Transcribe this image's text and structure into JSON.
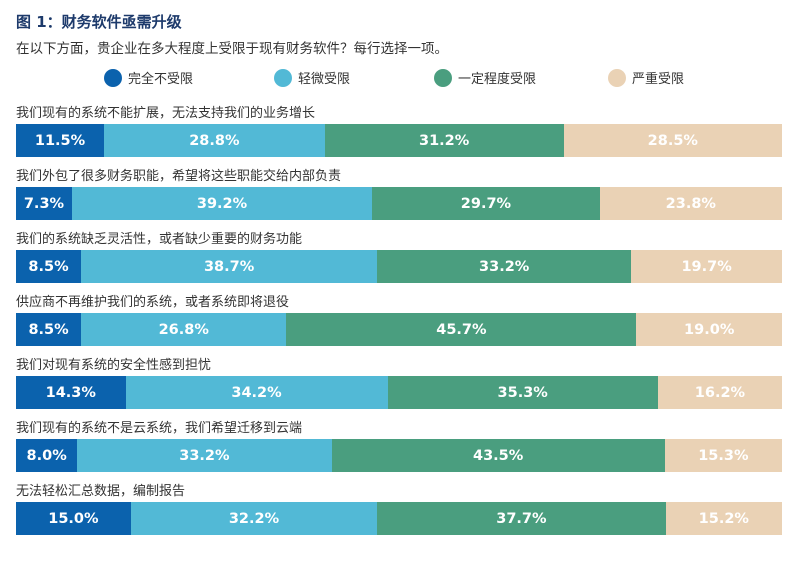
{
  "chart_data": {
    "type": "bar",
    "orientation": "horizontal-stacked-100",
    "title": "图 1：财务软件亟需升级",
    "subtitle": "在以下方面，贵企业在多大程度上受限于现有财务软件？每行选择一项。",
    "legend_position": "top",
    "series": [
      {
        "name": "完全不受限",
        "color": "#0b62ad"
      },
      {
        "name": "轻微受限",
        "color": "#52b9d6"
      },
      {
        "name": "一定程度受限",
        "color": "#4a9e7f"
      },
      {
        "name": "严重受限",
        "color": "#ead2b5"
      }
    ],
    "categories": [
      "我们现有的系统不能扩展，无法支持我们的业务增长",
      "我们外包了很多财务职能，希望将这些职能交给内部负责",
      "我们的系统缺乏灵活性，或者缺少重要的财务功能",
      "供应商不再维护我们的系统，或者系统即将退役",
      "我们对现有系统的安全性感到担忧",
      "我们现有的系统不是云系统，我们希望迁移到云端",
      "无法轻松汇总数据，编制报告"
    ],
    "values": [
      [
        11.5,
        28.8,
        31.2,
        28.5
      ],
      [
        7.3,
        39.2,
        29.7,
        23.8
      ],
      [
        8.5,
        38.7,
        33.2,
        19.7
      ],
      [
        8.5,
        26.8,
        45.7,
        19.0
      ],
      [
        14.3,
        34.2,
        35.3,
        16.2
      ],
      [
        8.0,
        33.2,
        43.5,
        15.3
      ],
      [
        15.0,
        32.2,
        37.7,
        15.2
      ]
    ],
    "unit": "%"
  }
}
